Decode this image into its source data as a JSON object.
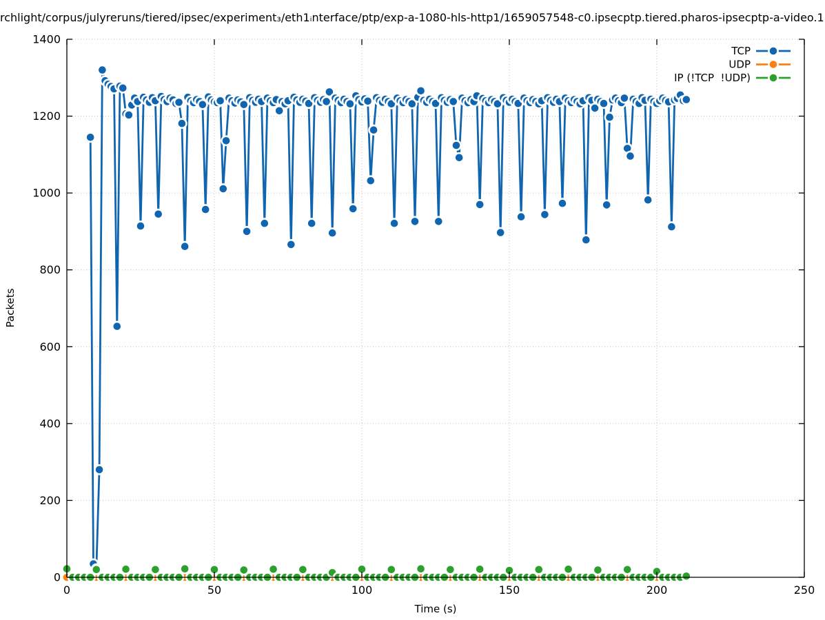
{
  "chart_data": {
    "type": "line",
    "style": "linespoints-filled-circles-with-point-erase-boxes",
    "title": "rchlight/corpus/julyreruns/tiered/ipsec/experiment₃/eth1ᵢnterface/ptp/exp-a-1080-hls-http1/1659057548-c0.ipsecptp.tiered.pharos-ipsecptp-a-video.1",
    "xlabel": "Time (s)",
    "ylabel": "Packets",
    "xlim": [
      0,
      250
    ],
    "ylim": [
      0,
      1400
    ],
    "xticks": [
      0,
      50,
      100,
      150,
      200,
      250
    ],
    "yticks": [
      0,
      200,
      400,
      600,
      800,
      1000,
      1200,
      1400
    ],
    "grid": true,
    "legend_position": "top-right-inside",
    "series": [
      {
        "key": "tcp",
        "name": "TCP",
        "color": "#1065b1",
        "marker": "filled-circle",
        "t_start": 8,
        "t_step": 1,
        "values": [
          1145,
          35,
          22,
          280,
          1320,
          1292,
          1283,
          1277,
          1271,
          653,
          1278,
          1273,
          1206,
          1203,
          1229,
          1247,
          1238,
          914,
          1249,
          1242,
          1236,
          1248,
          1240,
          945,
          1251,
          1243,
          1238,
          1247,
          1242,
          1233,
          1236,
          1181,
          861,
          1249,
          1240,
          1235,
          1243,
          1238,
          1230,
          957,
          1250,
          1242,
          1237,
          1235,
          1240,
          1011,
          1136,
          1247,
          1240,
          1234,
          1242,
          1237,
          1230,
          900,
          1248,
          1241,
          1236,
          1244,
          1238,
          921,
          1247,
          1240,
          1235,
          1243,
          1214,
          1238,
          1232,
          1240,
          866,
          1249,
          1242,
          1236,
          1244,
          1239,
          1233,
          921,
          1248,
          1241,
          1236,
          1243,
          1238,
          1263,
          896,
          1247,
          1241,
          1235,
          1244,
          1238,
          1232,
          959,
          1253,
          1243,
          1237,
          1245,
          1239,
          1032,
          1164,
          1248,
          1241,
          1236,
          1244,
          1238,
          1232,
          921,
          1247,
          1240,
          1235,
          1243,
          1238,
          1232,
          926,
          1249,
          1266,
          1241,
          1236,
          1244,
          1238,
          1233,
          926,
          1248,
          1241,
          1236,
          1243,
          1238,
          1124,
          1092,
          1247,
          1240,
          1235,
          1243,
          1238,
          1253,
          970,
          1246,
          1240,
          1235,
          1243,
          1238,
          1232,
          897,
          1248,
          1241,
          1236,
          1244,
          1238,
          1233,
          938,
          1247,
          1240,
          1235,
          1243,
          1238,
          1232,
          1240,
          944,
          1248,
          1241,
          1236,
          1244,
          1238,
          973,
          1247,
          1240,
          1235,
          1243,
          1238,
          1232,
          1240,
          878,
          1248,
          1241,
          1221,
          1244,
          1238,
          1233,
          969,
          1197,
          1242,
          1247,
          1240,
          1235,
          1247,
          1116,
          1096,
          1244,
          1238,
          1233,
          1248,
          1241,
          982,
          1244,
          1238,
          1233,
          1240,
          1247,
          1241,
          1237,
          912,
          1242,
          1246,
          1255,
          1240,
          1243
        ]
      },
      {
        "key": "udp",
        "name": "UDP",
        "color": "#ff7f0e",
        "marker": "filled-circle",
        "t_start": 0,
        "t_step": 2,
        "values": [
          0,
          0,
          0,
          0,
          0,
          0,
          0,
          0,
          0,
          0,
          0,
          0,
          0,
          0,
          0,
          0,
          0,
          0,
          0,
          0,
          0,
          0,
          0,
          0,
          0,
          0,
          0,
          0,
          0,
          0,
          0,
          0,
          0,
          0,
          0,
          0,
          0,
          0,
          0,
          0,
          0,
          0,
          0,
          0,
          0,
          0,
          0,
          0,
          0,
          0,
          0,
          0,
          0,
          0,
          0,
          0,
          0,
          0,
          0,
          0,
          0,
          0,
          0,
          0,
          0,
          0,
          0,
          0,
          0,
          0,
          0,
          0,
          0,
          0,
          0,
          0,
          0,
          0,
          0,
          0,
          0,
          0,
          0,
          0,
          0,
          0,
          0,
          0,
          0,
          0,
          0,
          0,
          0,
          0,
          0,
          0,
          0,
          0,
          0,
          0,
          0,
          0,
          0,
          0,
          0,
          0
        ]
      },
      {
        "key": "ip-other",
        "name": "IP (!TCP  !UDP)",
        "color": "#2ca02c",
        "marker": "filled-circle",
        "t_start": 0,
        "t_step": 2,
        "values": [
          22,
          0,
          0,
          0,
          0,
          20,
          0,
          0,
          0,
          0,
          21,
          0,
          0,
          0,
          0,
          20,
          0,
          0,
          0,
          0,
          22,
          0,
          0,
          0,
          0,
          20,
          0,
          0,
          0,
          0,
          19,
          0,
          0,
          0,
          0,
          21,
          0,
          0,
          0,
          0,
          20,
          0,
          0,
          0,
          0,
          12,
          0,
          0,
          0,
          0,
          21,
          0,
          0,
          0,
          0,
          20,
          0,
          0,
          0,
          0,
          22,
          0,
          0,
          0,
          0,
          20,
          0,
          0,
          0,
          0,
          21,
          0,
          0,
          0,
          0,
          18,
          0,
          0,
          0,
          0,
          20,
          0,
          0,
          0,
          0,
          21,
          0,
          0,
          0,
          0,
          19,
          0,
          0,
          0,
          0,
          20,
          0,
          0,
          0,
          0,
          15,
          0,
          0,
          0,
          0,
          3
        ]
      }
    ]
  }
}
